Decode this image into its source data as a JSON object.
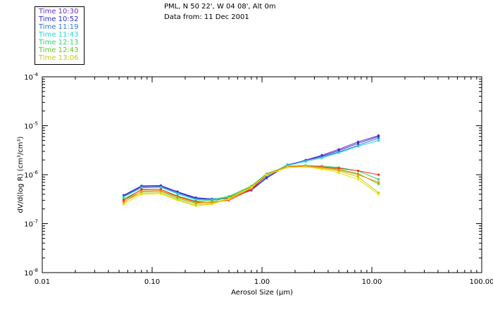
{
  "header": {
    "location": "PML, N 50 22', W 04 08', Alt 0m",
    "data_from": "Data from: 11 Dec 2001"
  },
  "legend": [
    {
      "label": "Time 10:30",
      "color": "#6a2fbf"
    },
    {
      "label": "Time 10:52",
      "color": "#2c2ccf"
    },
    {
      "label": "Time 11:19",
      "color": "#2f73df"
    },
    {
      "label": "Time 11:43",
      "color": "#22d6d6"
    },
    {
      "label": "Time 12:13",
      "color": "#2fd36a"
    },
    {
      "label": "Time 12:43",
      "color": "#5fc81f"
    },
    {
      "label": "Time 13:06",
      "color": "#c7c71a"
    }
  ],
  "chart_data": {
    "type": "line",
    "xscale": "log",
    "yscale": "log",
    "xlim": [
      0.01,
      100
    ],
    "ylim": [
      1e-08,
      0.0001
    ],
    "xlabel": "Aerosol Size (μm)",
    "ylabel": "dV/d(log R) (cm³/cm³)",
    "x_ticks": [
      "0.01",
      "0.10",
      "1.00",
      "10.00",
      "100.00"
    ],
    "x_tick_values": [
      0.01,
      0.1,
      1,
      10,
      100
    ],
    "y_ticks": [
      {
        "base": "10",
        "exp": "-8",
        "value": 1e-08
      },
      {
        "base": "10",
        "exp": "-7",
        "value": 1e-07
      },
      {
        "base": "10",
        "exp": "-6",
        "value": 1e-06
      },
      {
        "base": "10",
        "exp": "-5",
        "value": 1e-05
      },
      {
        "base": "10",
        "exp": "-4",
        "value": 0.0001
      }
    ],
    "x": [
      0.055,
      0.08,
      0.12,
      0.17,
      0.25,
      0.35,
      0.5,
      0.8,
      1.1,
      1.7,
      2.5,
      3.5,
      5.0,
      7.5,
      11.5
    ],
    "series": [
      {
        "name": "Time 10:30",
        "color": "#6a2fbf",
        "values": [
          3.7e-07,
          5.8e-07,
          5.9e-07,
          4.4e-07,
          3.3e-07,
          3.1e-07,
          3.3e-07,
          4.8e-07,
          8.5e-07,
          1.55e-06,
          2e-06,
          2.5e-06,
          3.3e-06,
          4.7e-06,
          6.3e-06
        ]
      },
      {
        "name": "Time 10:52",
        "color": "#2c2ccf",
        "values": [
          3.8e-07,
          5.9e-07,
          6e-07,
          4.5e-07,
          3.4e-07,
          3.2e-07,
          3.4e-07,
          5e-07,
          8.8e-07,
          1.58e-06,
          1.95e-06,
          2.4e-06,
          3.1e-06,
          4.4e-06,
          6e-06
        ]
      },
      {
        "name": "Time 11:19",
        "color": "#2f73df",
        "values": [
          3.6e-07,
          5.6e-07,
          5.7e-07,
          4.2e-07,
          3.2e-07,
          3e-07,
          3.4e-07,
          5.4e-07,
          9.4e-07,
          1.6e-06,
          1.95e-06,
          2.3e-06,
          2.9e-06,
          4e-06,
          5.6e-06
        ]
      },
      {
        "name": "Time 11:43",
        "color": "#22d6d6",
        "values": [
          3.5e-07,
          5.4e-07,
          5.5e-07,
          4.1e-07,
          3.1e-07,
          3.1e-07,
          3.6e-07,
          5.7e-07,
          1e-06,
          1.55e-06,
          1.85e-06,
          2.2e-06,
          2.8e-06,
          3.8e-06,
          5e-06
        ]
      },
      {
        "name": "Time 12:13",
        "color": "#2fd36a",
        "values": [
          3.2e-07,
          4.9e-07,
          5e-07,
          3.7e-07,
          2.9e-07,
          3e-07,
          3.6e-07,
          5.9e-07,
          1.05e-06,
          1.5e-06,
          1.55e-06,
          1.5e-06,
          1.4e-06,
          1.2e-06,
          8e-07
        ]
      },
      {
        "name": "Time 12:43",
        "color": "#5fc81f",
        "values": [
          3e-07,
          4.5e-07,
          4.6e-07,
          3.3e-07,
          2.6e-07,
          2.8e-07,
          3.5e-07,
          5.8e-07,
          1.02e-06,
          1.45e-06,
          1.5e-06,
          1.4e-06,
          1.3e-06,
          1.05e-06,
          6.5e-07
        ]
      },
      {
        "name": "Time 13:06",
        "color": "#c7c71a",
        "values": [
          2.8e-07,
          4.2e-07,
          4.3e-07,
          3.1e-07,
          2.4e-07,
          2.6e-07,
          3.3e-07,
          5.6e-07,
          9.8e-07,
          1.4e-06,
          1.45e-06,
          1.35e-06,
          1.2e-06,
          9e-07,
          4.3e-07
        ]
      },
      {
        "name": "",
        "color": "#ff2a1a",
        "values": [
          3e-07,
          5e-07,
          5e-07,
          3.6e-07,
          2.8e-07,
          2.7e-07,
          3e-07,
          5e-07,
          1e-06,
          1.45e-06,
          1.5e-06,
          1.45e-06,
          1.35e-06,
          1.2e-06,
          1e-06
        ]
      },
      {
        "name": "",
        "color": "#ff8a00",
        "values": [
          2.7e-07,
          4.6e-07,
          4.7e-07,
          3.5e-07,
          2.7e-07,
          2.7e-07,
          3.1e-07,
          5.3e-07,
          1.03e-06,
          1.48e-06,
          1.52e-06,
          1.4e-06,
          1.25e-06,
          1e-06,
          7e-07
        ]
      },
      {
        "name": "",
        "color": "#e3e300",
        "values": [
          2.5e-07,
          4e-07,
          4.1e-07,
          3e-07,
          2.3e-07,
          2.5e-07,
          3.2e-07,
          5.5e-07,
          1e-06,
          1.42e-06,
          1.45e-06,
          1.3e-06,
          1.1e-06,
          8e-07,
          4e-07
        ]
      }
    ]
  }
}
